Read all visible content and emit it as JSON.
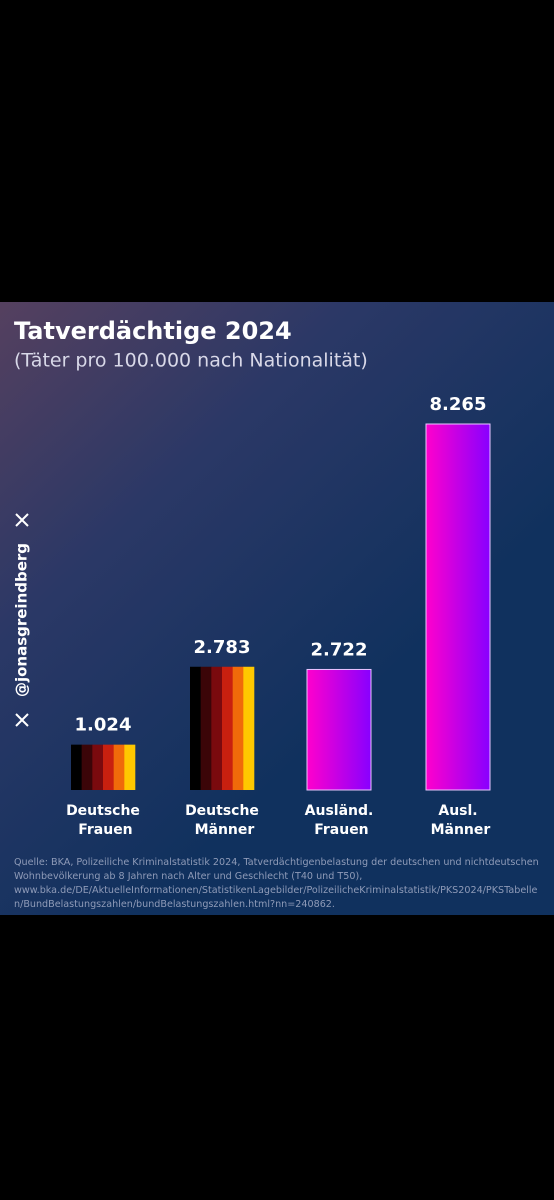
{
  "chart_data": {
    "type": "bar",
    "title": "Tatverdächtige 2024",
    "subtitle": "(Täter pro 100.000 nach Nationalität)",
    "categories": [
      "Deutsche Frauen",
      "Deutsche Männer",
      "Ausländ. Frauen",
      "Ausl. Männer"
    ],
    "values": [
      1024,
      2783,
      2722,
      8265
    ],
    "value_labels": [
      "1.024",
      "2.783",
      "2.722",
      "8.265"
    ],
    "bar_styles": [
      "stripes",
      "stripes",
      "gradient",
      "gradient"
    ],
    "stripe_colors": [
      "#000000",
      "#3b0508",
      "#7a0a0e",
      "#c8200f",
      "#f06a0a",
      "#ffc800"
    ],
    "gradient_colors": [
      "#ff00cc",
      "#8800ff"
    ],
    "watermark": "@jonasgreindberg",
    "source": [
      "Quelle: BKA, Polizeiliche Kriminalstatistik 2024, Tatverdächtigenbelastung der deutschen und nichtdeutschen",
      "Wohnbevölkerung ab 8 Jahren nach Alter und Geschlecht (T40 und T50),",
      "www.bka.de/DE/AktuelleInformationen/StatistikenLagebilder/PolizeilicheKriminalstatistik/PKS2024/PKSTabelle",
      "n/BundBelastungszahlen/bundBelastungszahlen.html?nn=240862."
    ]
  }
}
